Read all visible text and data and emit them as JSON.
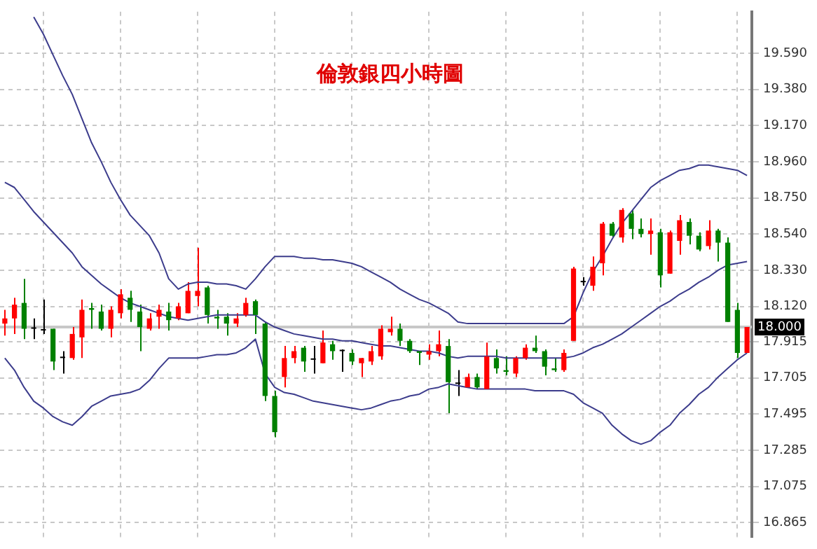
{
  "chart_data": {
    "type": "candlestick",
    "title": "倫敦銀四小時圖",
    "categories": [
      null,
      null,
      null,
      null,
      null,
      null,
      null,
      null,
      null,
      null,
      null,
      null,
      null,
      null,
      null,
      null,
      null,
      null,
      null,
      null,
      null,
      null,
      null,
      null,
      null,
      null,
      null,
      null,
      null,
      null,
      null,
      null,
      null,
      null,
      null,
      null,
      null,
      null,
      null,
      null,
      null,
      null,
      null,
      null,
      null,
      null,
      null,
      null,
      null,
      null,
      null,
      null,
      null,
      null,
      null,
      null,
      null,
      null,
      null,
      null,
      null,
      null,
      null,
      null,
      null,
      null,
      null,
      null,
      null,
      null,
      null,
      null,
      null,
      null,
      null,
      null,
      null,
      null
    ],
    "ohlc": [
      [
        18.02,
        18.1,
        17.95,
        18.05
      ],
      [
        18.05,
        18.17,
        17.96,
        18.13
      ],
      [
        18.14,
        18.28,
        17.93,
        17.99
      ],
      [
        17.99,
        18.05,
        17.93,
        17.99
      ],
      [
        17.98,
        18.16,
        17.96,
        17.98
      ],
      [
        17.99,
        17.99,
        17.75,
        17.8
      ],
      [
        17.82,
        17.86,
        17.73,
        17.82
      ],
      [
        17.82,
        18.0,
        17.81,
        17.96
      ],
      [
        17.94,
        18.16,
        17.82,
        18.1
      ],
      [
        18.11,
        18.14,
        17.99,
        18.1
      ],
      [
        18.09,
        18.13,
        17.98,
        17.99
      ],
      [
        17.99,
        18.12,
        17.94,
        18.1
      ],
      [
        18.08,
        18.22,
        18.05,
        18.19
      ],
      [
        18.17,
        18.21,
        18.03,
        18.1
      ],
      [
        18.09,
        18.13,
        17.86,
        18.0
      ],
      [
        17.99,
        18.08,
        17.98,
        18.05
      ],
      [
        18.06,
        18.13,
        17.99,
        18.1
      ],
      [
        18.09,
        18.14,
        17.98,
        18.04
      ],
      [
        18.05,
        18.14,
        18.04,
        18.12
      ],
      [
        18.08,
        18.26,
        18.08,
        18.21
      ],
      [
        18.18,
        18.46,
        18.12,
        18.21
      ],
      [
        18.23,
        18.24,
        18.02,
        18.07
      ],
      [
        18.06,
        18.1,
        17.99,
        18.05
      ],
      [
        18.06,
        18.08,
        17.95,
        18.02
      ],
      [
        18.02,
        18.08,
        18.0,
        18.05
      ],
      [
        18.07,
        18.17,
        18.06,
        18.14
      ],
      [
        18.15,
        18.16,
        17.96,
        18.07
      ],
      [
        18.02,
        18.03,
        17.57,
        17.6
      ],
      [
        17.6,
        17.63,
        17.36,
        17.39
      ],
      [
        17.71,
        17.89,
        17.65,
        17.82
      ],
      [
        17.82,
        17.89,
        17.79,
        17.86
      ],
      [
        17.88,
        17.89,
        17.74,
        17.8
      ],
      [
        17.81,
        17.89,
        17.73,
        17.81
      ],
      [
        17.79,
        17.98,
        17.79,
        17.91
      ],
      [
        17.9,
        17.92,
        17.81,
        17.86
      ],
      [
        17.86,
        17.87,
        17.74,
        17.86
      ],
      [
        17.85,
        17.87,
        17.78,
        17.8
      ],
      [
        17.79,
        17.82,
        17.71,
        17.82
      ],
      [
        17.8,
        17.89,
        17.78,
        17.86
      ],
      [
        17.83,
        18.01,
        17.81,
        17.99
      ],
      [
        17.97,
        18.06,
        17.95,
        17.99
      ],
      [
        17.99,
        18.02,
        17.89,
        17.92
      ],
      [
        17.92,
        17.93,
        17.85,
        17.86
      ],
      [
        17.86,
        17.86,
        17.78,
        17.85
      ],
      [
        17.84,
        17.9,
        17.81,
        17.86
      ],
      [
        17.86,
        17.98,
        17.83,
        17.9
      ],
      [
        17.89,
        17.93,
        17.5,
        17.68
      ],
      [
        17.67,
        17.75,
        17.6,
        17.67
      ],
      [
        17.65,
        17.73,
        17.65,
        17.71
      ],
      [
        17.71,
        17.73,
        17.64,
        17.65
      ],
      [
        17.64,
        17.91,
        17.64,
        17.83
      ],
      [
        17.82,
        17.87,
        17.73,
        17.76
      ],
      [
        17.75,
        17.83,
        17.72,
        17.74
      ],
      [
        17.73,
        17.83,
        17.71,
        17.82
      ],
      [
        17.82,
        17.9,
        17.81,
        17.88
      ],
      [
        17.88,
        17.95,
        17.85,
        17.86
      ],
      [
        17.86,
        17.87,
        17.72,
        17.77
      ],
      [
        17.76,
        17.82,
        17.74,
        17.75
      ],
      [
        17.75,
        17.87,
        17.74,
        17.85
      ],
      [
        17.92,
        18.35,
        17.92,
        18.34
      ],
      [
        18.26,
        18.29,
        18.24,
        18.26
      ],
      [
        18.24,
        18.41,
        18.21,
        18.35
      ],
      [
        18.37,
        18.61,
        18.3,
        18.6
      ],
      [
        18.6,
        18.61,
        18.52,
        18.53
      ],
      [
        18.52,
        18.69,
        18.49,
        18.68
      ],
      [
        18.66,
        18.68,
        18.51,
        18.57
      ],
      [
        18.57,
        18.63,
        18.52,
        18.54
      ],
      [
        18.54,
        18.63,
        18.42,
        18.56
      ],
      [
        18.55,
        18.57,
        18.23,
        18.3
      ],
      [
        18.31,
        18.56,
        18.31,
        18.55
      ],
      [
        18.5,
        18.65,
        18.42,
        18.62
      ],
      [
        18.61,
        18.63,
        18.48,
        18.53
      ],
      [
        18.53,
        18.55,
        18.44,
        18.45
      ],
      [
        18.47,
        18.62,
        18.45,
        18.56
      ],
      [
        18.56,
        18.57,
        18.38,
        18.49
      ],
      [
        18.49,
        18.52,
        18.03,
        18.03
      ],
      [
        18.1,
        18.14,
        17.82,
        17.85
      ],
      [
        17.85,
        18.0,
        17.85,
        18.0
      ]
    ],
    "colors": [
      "#ff0000",
      "#ff0000",
      "#008000",
      "#000000",
      "#000000",
      "#008000",
      "#000000",
      "#ff0000",
      "#ff0000",
      "#008000",
      "#008000",
      "#ff0000",
      "#ff0000",
      "#008000",
      "#008000",
      "#ff0000",
      "#ff0000",
      "#008000",
      "#ff0000",
      "#ff0000",
      "#ff0000",
      "#008000",
      "#008000",
      "#008000",
      "#ff0000",
      "#ff0000",
      "#008000",
      "#008000",
      "#008000",
      "#ff0000",
      "#ff0000",
      "#008000",
      "#000000",
      "#ff0000",
      "#008000",
      "#000000",
      "#008000",
      "#ff0000",
      "#ff0000",
      "#ff0000",
      "#ff0000",
      "#008000",
      "#008000",
      "#008000",
      "#ff0000",
      "#ff0000",
      "#008000",
      "#000000",
      "#ff0000",
      "#008000",
      "#ff0000",
      "#008000",
      "#008000",
      "#ff0000",
      "#ff0000",
      "#008000",
      "#008000",
      "#008000",
      "#ff0000",
      "#ff0000",
      "#000000",
      "#ff0000",
      "#ff0000",
      "#008000",
      "#ff0000",
      "#008000",
      "#008000",
      "#ff0000",
      "#008000",
      "#ff0000",
      "#ff0000",
      "#008000",
      "#008000",
      "#ff0000",
      "#008000",
      "#008000",
      "#008000",
      "#ff0000"
    ],
    "series": [
      {
        "type": "line",
        "color": "#3c3c8c",
        "values": [
          null,
          null,
          null,
          19.8,
          19.7,
          19.58,
          19.46,
          19.35,
          19.21,
          19.07,
          18.96,
          18.84,
          18.74,
          18.65,
          18.59,
          18.53,
          18.43,
          18.28,
          18.22,
          18.25,
          18.26,
          18.26,
          18.25,
          18.25,
          18.24,
          18.22,
          18.28,
          18.35,
          18.41,
          18.41,
          18.41,
          18.4,
          18.4,
          18.39,
          18.39,
          18.38,
          18.37,
          18.35,
          18.32,
          18.29,
          18.26,
          18.22,
          18.19,
          18.16,
          18.14,
          18.11,
          18.08,
          18.03,
          18.02,
          18.02,
          18.02,
          18.02,
          18.02,
          18.02,
          18.02,
          18.02,
          18.02,
          18.02,
          18.02,
          18.06,
          18.2,
          18.32,
          18.41,
          18.51,
          18.6,
          18.67,
          18.74,
          18.81,
          18.85,
          18.88,
          18.91,
          18.92,
          18.94,
          18.94,
          18.93,
          18.92,
          18.91,
          18.88
        ]
      },
      {
        "type": "line",
        "color": "#3c3c8c",
        "values": [
          18.84,
          18.81,
          18.74,
          18.67,
          18.61,
          18.55,
          18.49,
          18.43,
          18.35,
          18.3,
          18.25,
          18.21,
          18.17,
          18.14,
          18.12,
          18.1,
          18.08,
          18.06,
          18.05,
          18.04,
          18.05,
          18.06,
          18.07,
          18.07,
          18.07,
          18.07,
          18.07,
          18.03,
          18.0,
          17.98,
          17.96,
          17.95,
          17.94,
          17.93,
          17.93,
          17.92,
          17.92,
          17.91,
          17.9,
          17.89,
          17.89,
          17.88,
          17.87,
          17.86,
          17.86,
          17.85,
          17.83,
          17.82,
          17.83,
          17.83,
          17.83,
          17.83,
          17.82,
          17.82,
          17.82,
          17.82,
          17.82,
          17.82,
          17.82,
          17.83,
          17.85,
          17.88,
          17.9,
          17.93,
          17.96,
          18.0,
          18.04,
          18.08,
          18.12,
          18.15,
          18.19,
          18.22,
          18.26,
          18.29,
          18.33,
          18.36,
          18.37,
          18.38
        ]
      },
      {
        "type": "line",
        "color": "#3c3c8c",
        "values": [
          17.82,
          17.75,
          17.65,
          17.57,
          17.53,
          17.48,
          17.45,
          17.43,
          17.48,
          17.54,
          17.57,
          17.6,
          17.61,
          17.62,
          17.64,
          17.69,
          17.76,
          17.82,
          17.82,
          17.82,
          17.82,
          17.83,
          17.84,
          17.84,
          17.85,
          17.88,
          17.93,
          17.73,
          17.65,
          17.62,
          17.61,
          17.59,
          17.57,
          17.56,
          17.55,
          17.54,
          17.53,
          17.52,
          17.53,
          17.55,
          17.57,
          17.58,
          17.6,
          17.61,
          17.64,
          17.65,
          17.67,
          17.66,
          17.65,
          17.64,
          17.64,
          17.64,
          17.64,
          17.64,
          17.64,
          17.63,
          17.63,
          17.63,
          17.63,
          17.61,
          17.56,
          17.53,
          17.5,
          17.43,
          17.38,
          17.34,
          17.32,
          17.34,
          17.39,
          17.43,
          17.5,
          17.55,
          17.61,
          17.65,
          17.71,
          17.76,
          17.81,
          17.85
        ]
      }
    ],
    "ylim": [
      16.78,
      19.83
    ],
    "yticks": [
      {
        "value": 19.59,
        "label": "19.590"
      },
      {
        "value": 19.38,
        "label": "19.380"
      },
      {
        "value": 19.17,
        "label": "19.170"
      },
      {
        "value": 18.96,
        "label": "18.960"
      },
      {
        "value": 18.75,
        "label": "18.750"
      },
      {
        "value": 18.54,
        "label": "18.540"
      },
      {
        "value": 18.33,
        "label": "18.330"
      },
      {
        "value": 18.12,
        "label": "18.120"
      },
      {
        "value": 17.915,
        "label": "17.915"
      },
      {
        "value": 17.705,
        "label": "17.705"
      },
      {
        "value": 17.495,
        "label": "17.495"
      },
      {
        "value": 17.285,
        "label": "17.285"
      },
      {
        "value": 17.075,
        "label": "17.075"
      },
      {
        "value": 16.865,
        "label": "16.865"
      }
    ],
    "ref_lines": [
      {
        "axis": "y",
        "value": 18.0,
        "label": "18.000",
        "color": "#c8c8c8"
      }
    ],
    "grid": true,
    "legend": false,
    "tick_labels": "y"
  }
}
